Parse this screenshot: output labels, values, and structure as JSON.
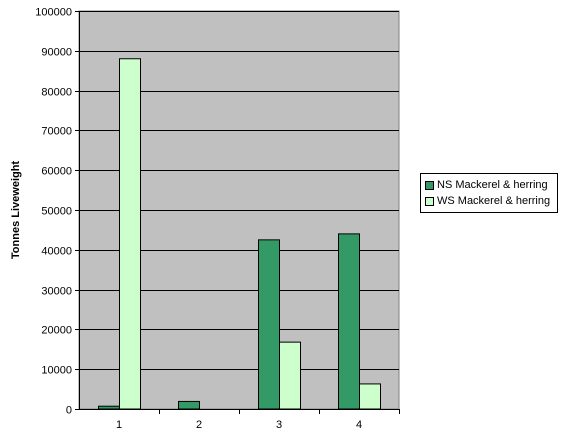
{
  "chart_data": {
    "type": "bar",
    "categories": [
      "1",
      "2",
      "3",
      "4"
    ],
    "series": [
      {
        "name": "NS Mackerel & herring",
        "values": [
          700,
          1900,
          42500,
          44000
        ],
        "color": "#339966"
      },
      {
        "name": "WS Mackerel & herring",
        "values": [
          88000,
          0,
          16800,
          6300
        ],
        "color": "#ccffcc"
      }
    ],
    "title": "",
    "xlabel": "",
    "ylabel": "Tonnes Liveweight",
    "ylim": [
      0,
      100000
    ],
    "yticks": [
      "0",
      "10000",
      "20000",
      "30000",
      "40000",
      "50000",
      "60000",
      "70000",
      "80000",
      "90000",
      "100000"
    ],
    "plot_background": "#c0c0c0",
    "grid": true,
    "legend_position": "right"
  }
}
